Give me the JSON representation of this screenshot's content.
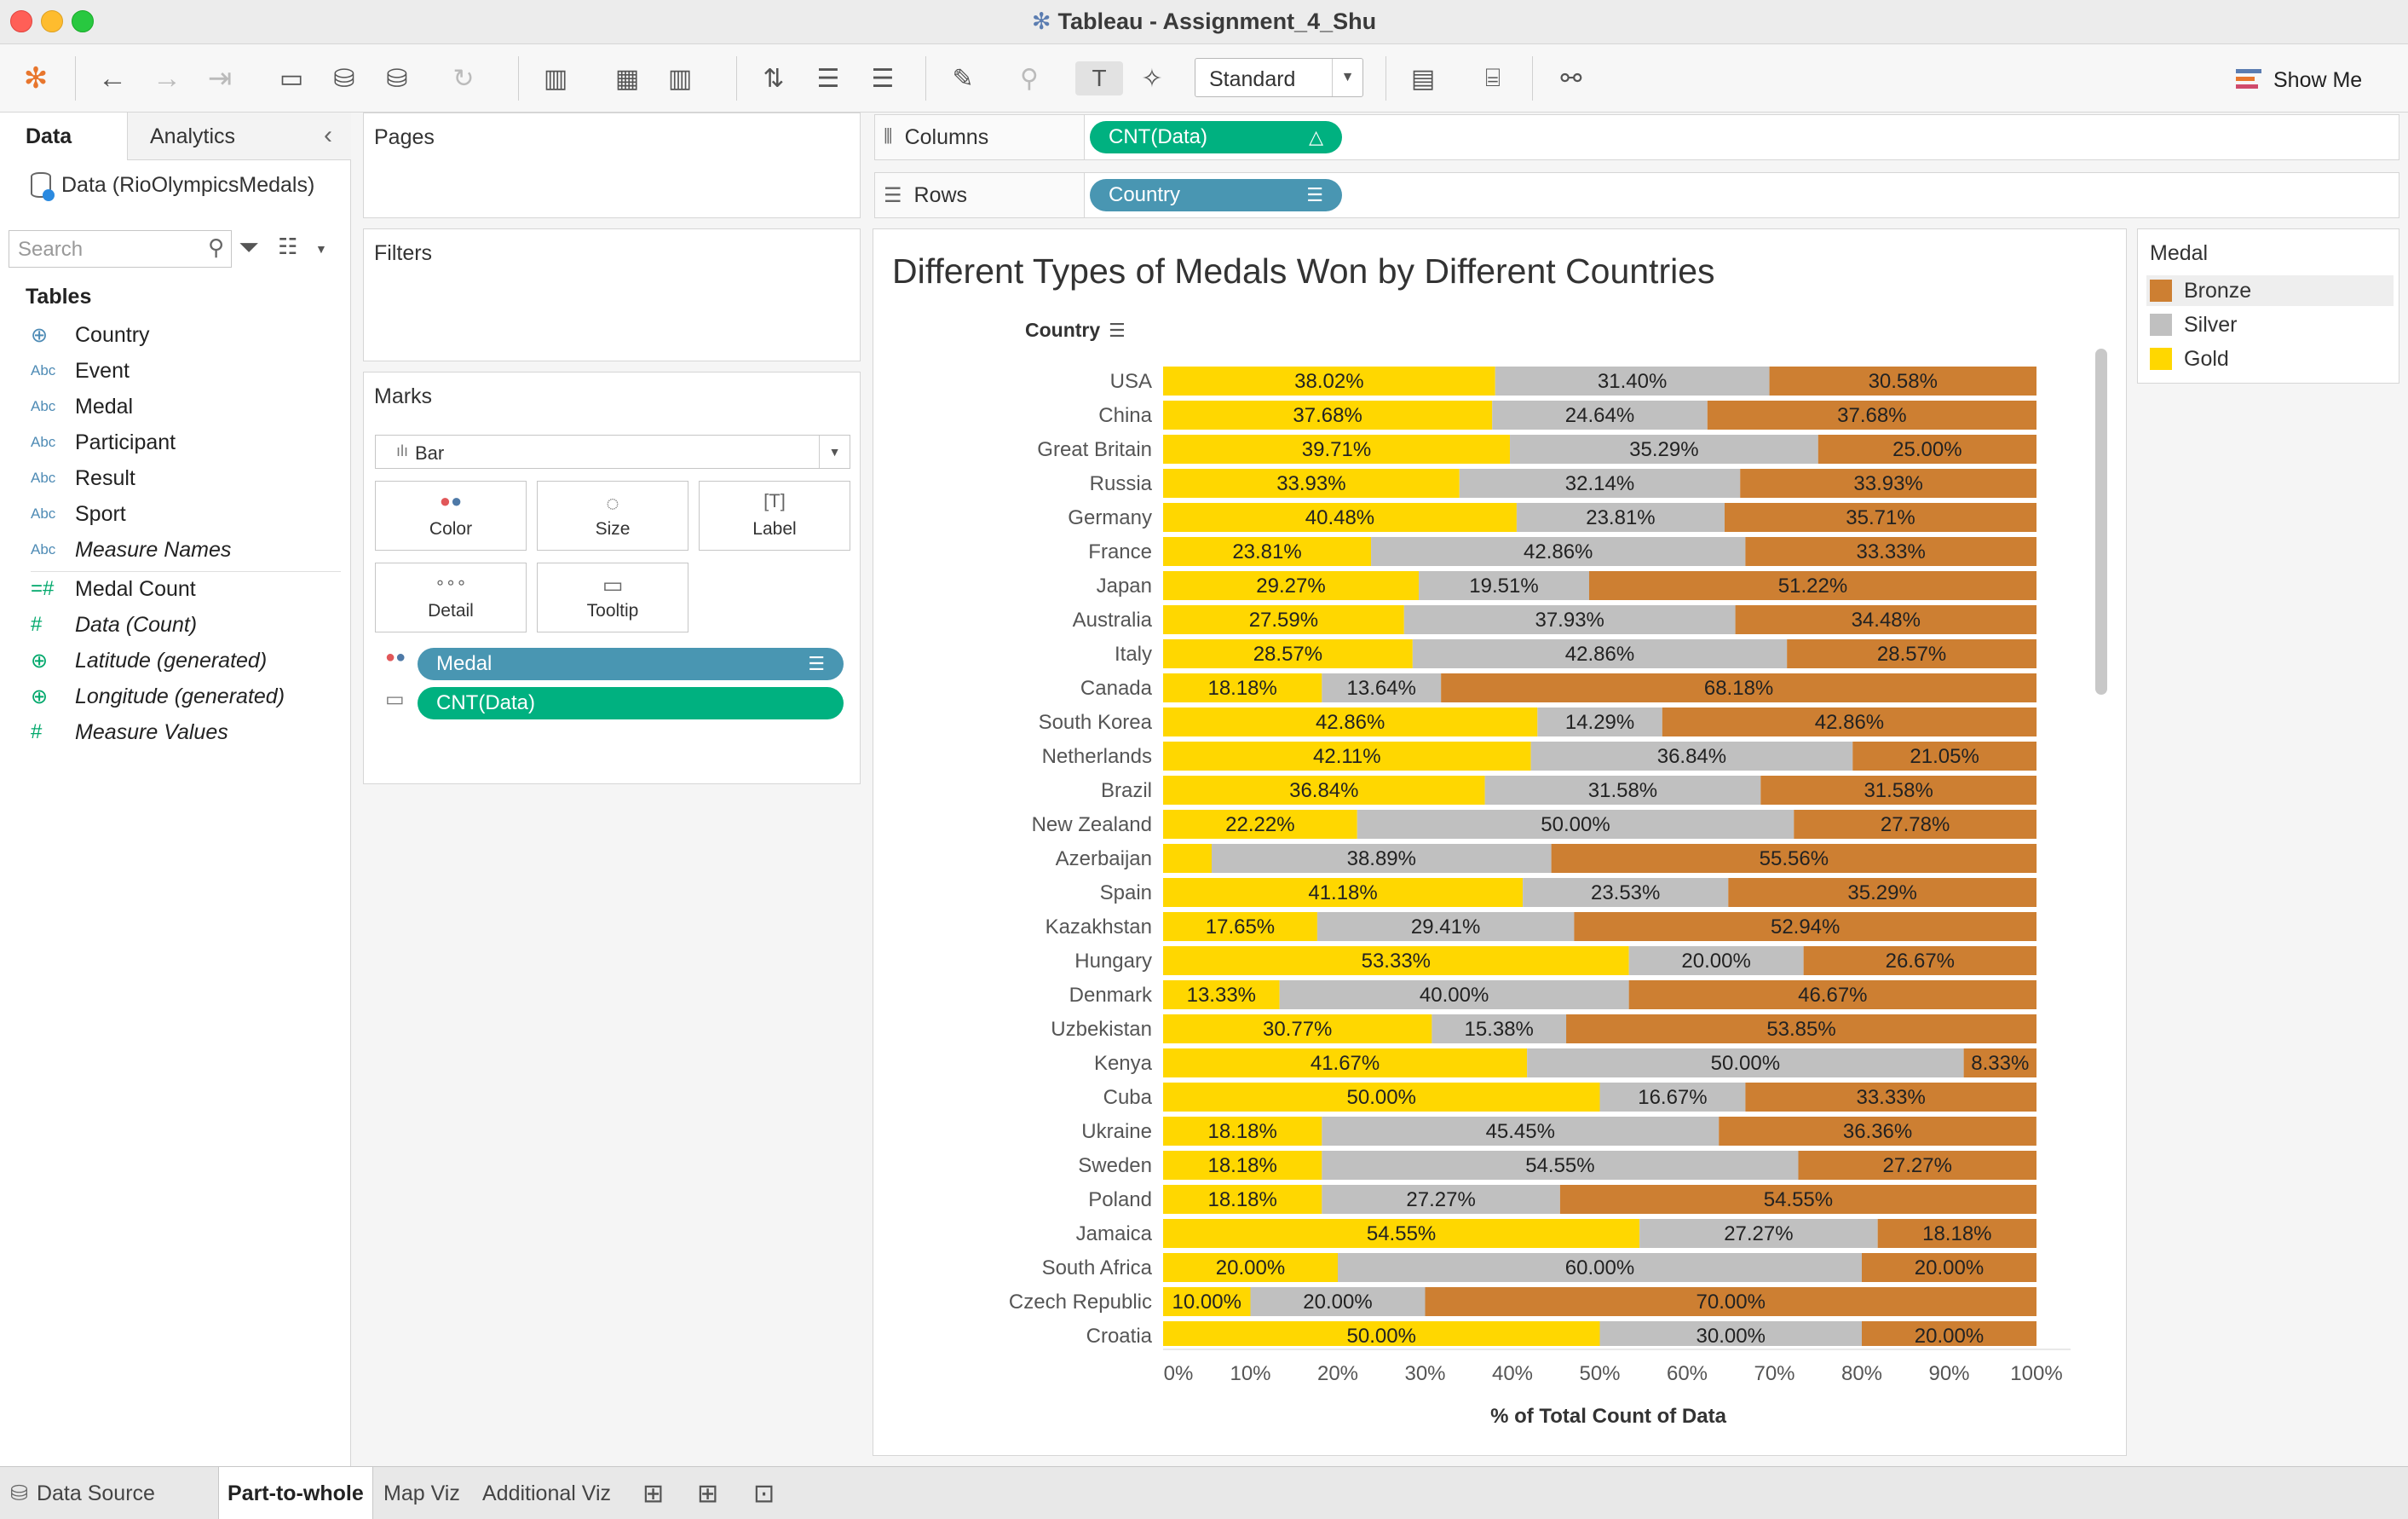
{
  "window": {
    "title": "Tableau - Assignment_4_Shu"
  },
  "toolbar": {
    "fit_value": "Standard",
    "show_me_label": "Show Me"
  },
  "data_pane": {
    "tabs": [
      "Data",
      "Analytics"
    ],
    "datasource": "Data (RioOlympicsMedals)",
    "search_placeholder": "Search",
    "tables_heading": "Tables",
    "fields": [
      {
        "name": "Country",
        "type": "geo"
      },
      {
        "name": "Event",
        "type": "Abc"
      },
      {
        "name": "Medal",
        "type": "Abc"
      },
      {
        "name": "Participant",
        "type": "Abc"
      },
      {
        "name": "Result",
        "type": "Abc"
      },
      {
        "name": "Sport",
        "type": "Abc"
      },
      {
        "name": "Measure Names",
        "type": "Abc"
      },
      {
        "name": "Medal Count",
        "type": "calc"
      },
      {
        "name": "Data (Count)",
        "type": "measure"
      },
      {
        "name": "Latitude (generated)",
        "type": "geo"
      },
      {
        "name": "Longitude (generated)",
        "type": "geo"
      },
      {
        "name": "Measure Values",
        "type": "measure"
      }
    ]
  },
  "cards": {
    "pages": "Pages",
    "filters": "Filters",
    "marks": "Marks",
    "mark_type": "Bar",
    "mark_buttons": [
      "Color",
      "Size",
      "Label",
      "Detail",
      "Tooltip"
    ],
    "mark_pills": [
      "Medal",
      "CNT(Data)"
    ]
  },
  "shelves": {
    "columns_label": "Columns",
    "columns_pill": "CNT(Data)",
    "rows_label": "Rows",
    "rows_pill": "Country"
  },
  "legend": {
    "title": "Medal",
    "items": [
      {
        "label": "Bronze",
        "color": "#cd7f32"
      },
      {
        "label": "Silver",
        "color": "#c0c0c0"
      },
      {
        "label": "Gold",
        "color": "#ffd700"
      }
    ]
  },
  "chart_data": {
    "type": "bar",
    "orientation": "horizontal-stacked-100",
    "title": "Different Types of Medals Won by Different Countries",
    "row_header": "Country",
    "xlabel": "% of Total Count of Data",
    "xlim": [
      0,
      100
    ],
    "x_ticks": [
      "0%",
      "10%",
      "20%",
      "30%",
      "40%",
      "50%",
      "60%",
      "70%",
      "80%",
      "90%",
      "100%"
    ],
    "grid": false,
    "series_order": [
      "Gold",
      "Silver",
      "Bronze"
    ],
    "colors": {
      "Gold": "#ffd700",
      "Silver": "#c0c0c0",
      "Bronze": "#cd7f32"
    },
    "rows": [
      {
        "country": "USA",
        "gold": 38.02,
        "silver": 31.4,
        "bronze": 30.58
      },
      {
        "country": "China",
        "gold": 37.68,
        "silver": 24.64,
        "bronze": 37.68
      },
      {
        "country": "Great Britain",
        "gold": 39.71,
        "silver": 35.29,
        "bronze": 25.0
      },
      {
        "country": "Russia",
        "gold": 33.93,
        "silver": 32.14,
        "bronze": 33.93
      },
      {
        "country": "Germany",
        "gold": 40.48,
        "silver": 23.81,
        "bronze": 35.71
      },
      {
        "country": "France",
        "gold": 23.81,
        "silver": 42.86,
        "bronze": 33.33
      },
      {
        "country": "Japan",
        "gold": 29.27,
        "silver": 19.51,
        "bronze": 51.22
      },
      {
        "country": "Australia",
        "gold": 27.59,
        "silver": 37.93,
        "bronze": 34.48
      },
      {
        "country": "Italy",
        "gold": 28.57,
        "silver": 42.86,
        "bronze": 28.57
      },
      {
        "country": "Canada",
        "gold": 18.18,
        "silver": 13.64,
        "bronze": 68.18
      },
      {
        "country": "South Korea",
        "gold": 42.86,
        "silver": 14.29,
        "bronze": 42.86
      },
      {
        "country": "Netherlands",
        "gold": 42.11,
        "silver": 36.84,
        "bronze": 21.05
      },
      {
        "country": "Brazil",
        "gold": 36.84,
        "silver": 31.58,
        "bronze": 31.58
      },
      {
        "country": "New Zealand",
        "gold": 22.22,
        "silver": 50.0,
        "bronze": 27.78
      },
      {
        "country": "Azerbaijan",
        "gold": 5.56,
        "silver": 38.89,
        "bronze": 55.56,
        "gold_label_hidden": true
      },
      {
        "country": "Spain",
        "gold": 41.18,
        "silver": 23.53,
        "bronze": 35.29
      },
      {
        "country": "Kazakhstan",
        "gold": 17.65,
        "silver": 29.41,
        "bronze": 52.94
      },
      {
        "country": "Hungary",
        "gold": 53.33,
        "silver": 20.0,
        "bronze": 26.67
      },
      {
        "country": "Denmark",
        "gold": 13.33,
        "silver": 40.0,
        "bronze": 46.67
      },
      {
        "country": "Uzbekistan",
        "gold": 30.77,
        "silver": 15.38,
        "bronze": 53.85
      },
      {
        "country": "Kenya",
        "gold": 41.67,
        "silver": 50.0,
        "bronze": 8.33
      },
      {
        "country": "Cuba",
        "gold": 50.0,
        "silver": 16.67,
        "bronze": 33.33
      },
      {
        "country": "Ukraine",
        "gold": 18.18,
        "silver": 45.45,
        "bronze": 36.36
      },
      {
        "country": "Sweden",
        "gold": 18.18,
        "silver": 54.55,
        "bronze": 27.27
      },
      {
        "country": "Poland",
        "gold": 18.18,
        "silver": 27.27,
        "bronze": 54.55
      },
      {
        "country": "Jamaica",
        "gold": 54.55,
        "silver": 27.27,
        "bronze": 18.18
      },
      {
        "country": "South Africa",
        "gold": 20.0,
        "silver": 60.0,
        "bronze": 20.0
      },
      {
        "country": "Czech Republic",
        "gold": 10.0,
        "silver": 20.0,
        "bronze": 70.0
      },
      {
        "country": "Croatia",
        "gold": 50.0,
        "silver": 30.0,
        "bronze": 20.0
      }
    ]
  },
  "bottom_tabs": [
    "Data Source",
    "Part-to-whole",
    "Map Viz",
    "Additional Viz"
  ]
}
